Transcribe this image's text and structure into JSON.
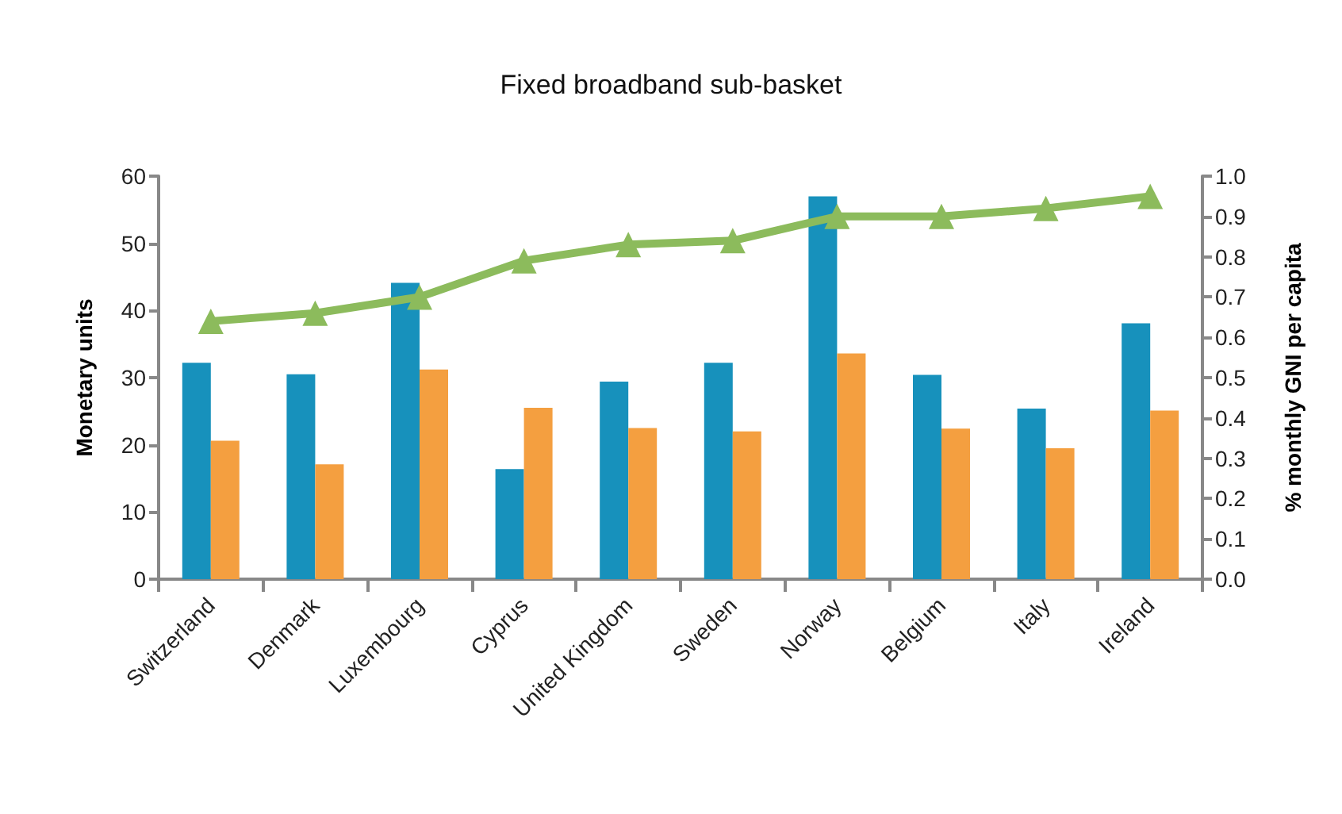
{
  "chart_data": {
    "type": "bar",
    "title": "Fixed broadband sub-basket",
    "ylabel": "Monetary units",
    "y2label": "% monthly GNI per capita",
    "categories": [
      "Switzerland",
      "Denmark",
      "Luxembourg",
      "Cyprus",
      "United Kingdom",
      "Sweden",
      "Norway",
      "Belgium",
      "Italy",
      "Ireland"
    ],
    "series": [
      {
        "color": "#1791bc",
        "values": [
          32.2,
          30.5,
          44.1,
          16.4,
          29.4,
          32.2,
          57.0,
          30.4,
          25.4,
          38.1
        ]
      },
      {
        "color": "#f49f40",
        "values": [
          20.6,
          17.1,
          31.2,
          25.5,
          22.5,
          22.0,
          33.6,
          22.4,
          19.5,
          25.1
        ]
      },
      {
        "type": "line",
        "axis": "y2",
        "color": "#8cbb5c",
        "marker": "triangle",
        "values": [
          0.64,
          0.66,
          0.7,
          0.79,
          0.83,
          0.84,
          0.9,
          0.9,
          0.92,
          0.95
        ]
      }
    ],
    "ylim": [
      0,
      60
    ],
    "yticks": [
      0,
      10,
      20,
      30,
      40,
      50,
      60
    ],
    "y2lim": [
      0,
      1
    ],
    "y2ticks": [
      {
        "value": 0,
        "label": "0.0"
      },
      0.1,
      0.2,
      0.3,
      0.4,
      0.5,
      0.6,
      0.7,
      0.8,
      0.9,
      {
        "value": 1,
        "label": "1.0"
      }
    ],
    "grid": false
  }
}
